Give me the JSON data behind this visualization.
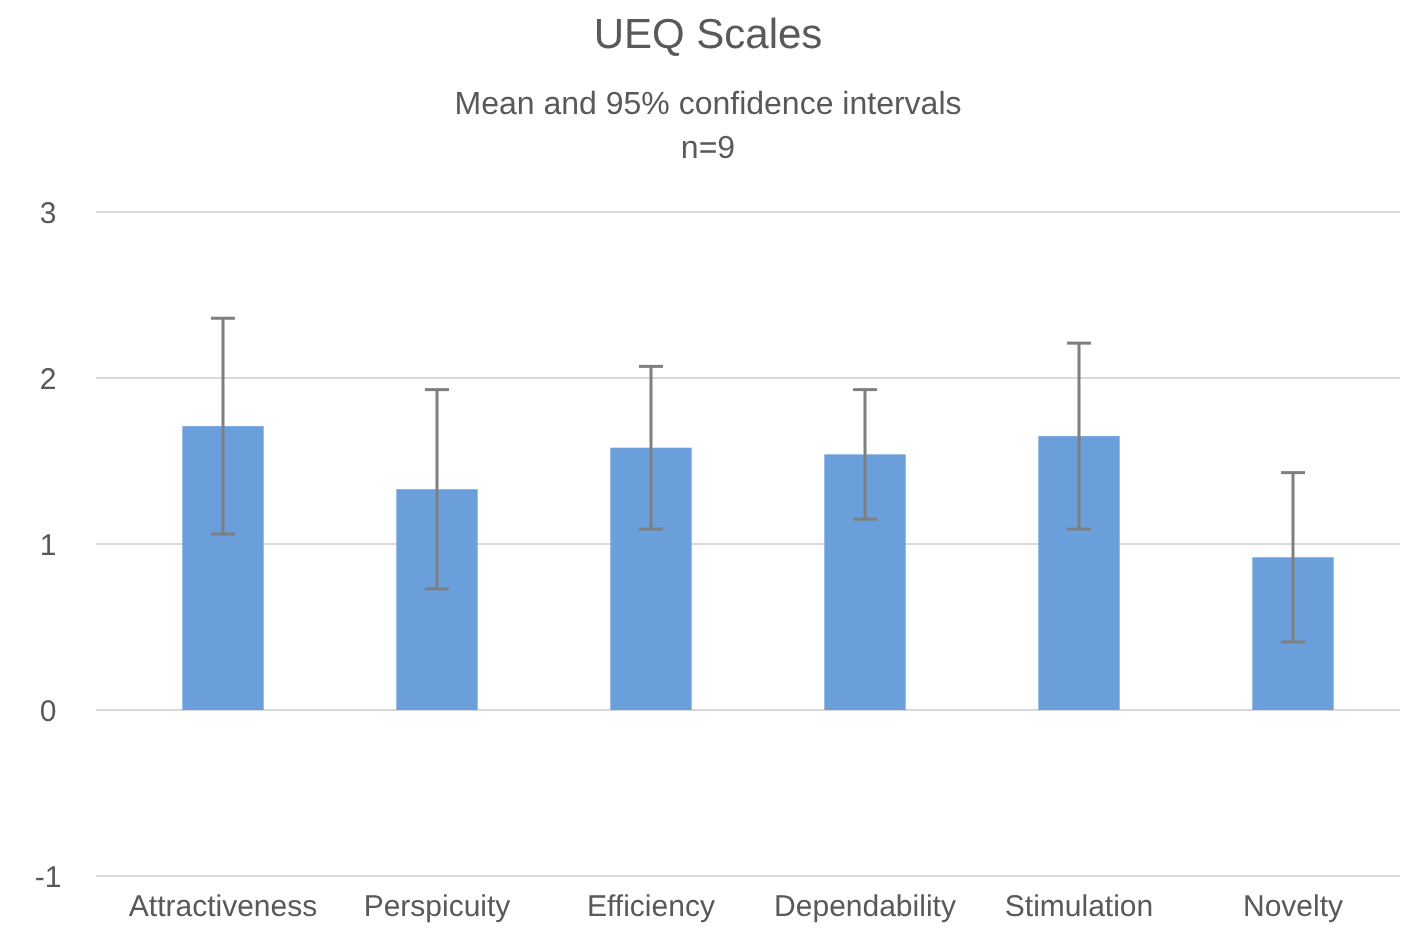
{
  "chart_data": {
    "type": "bar",
    "title": "UEQ Scales",
    "subtitle": "Mean and 95% confidence intervals",
    "annotations": [
      "n=9"
    ],
    "categories": [
      "Attractiveness",
      "Perspicuity",
      "Efficiency",
      "Dependability",
      "Stimulation",
      "Novelty"
    ],
    "values": [
      1.71,
      1.33,
      1.58,
      1.54,
      1.65,
      0.92
    ],
    "errors": [
      0.65,
      0.6,
      0.49,
      0.39,
      0.56,
      0.51
    ],
    "color": "#6a9fdc",
    "ylim": [
      -1,
      3
    ],
    "yticks": [
      -1,
      0,
      1,
      2,
      3
    ],
    "grid": "y"
  }
}
